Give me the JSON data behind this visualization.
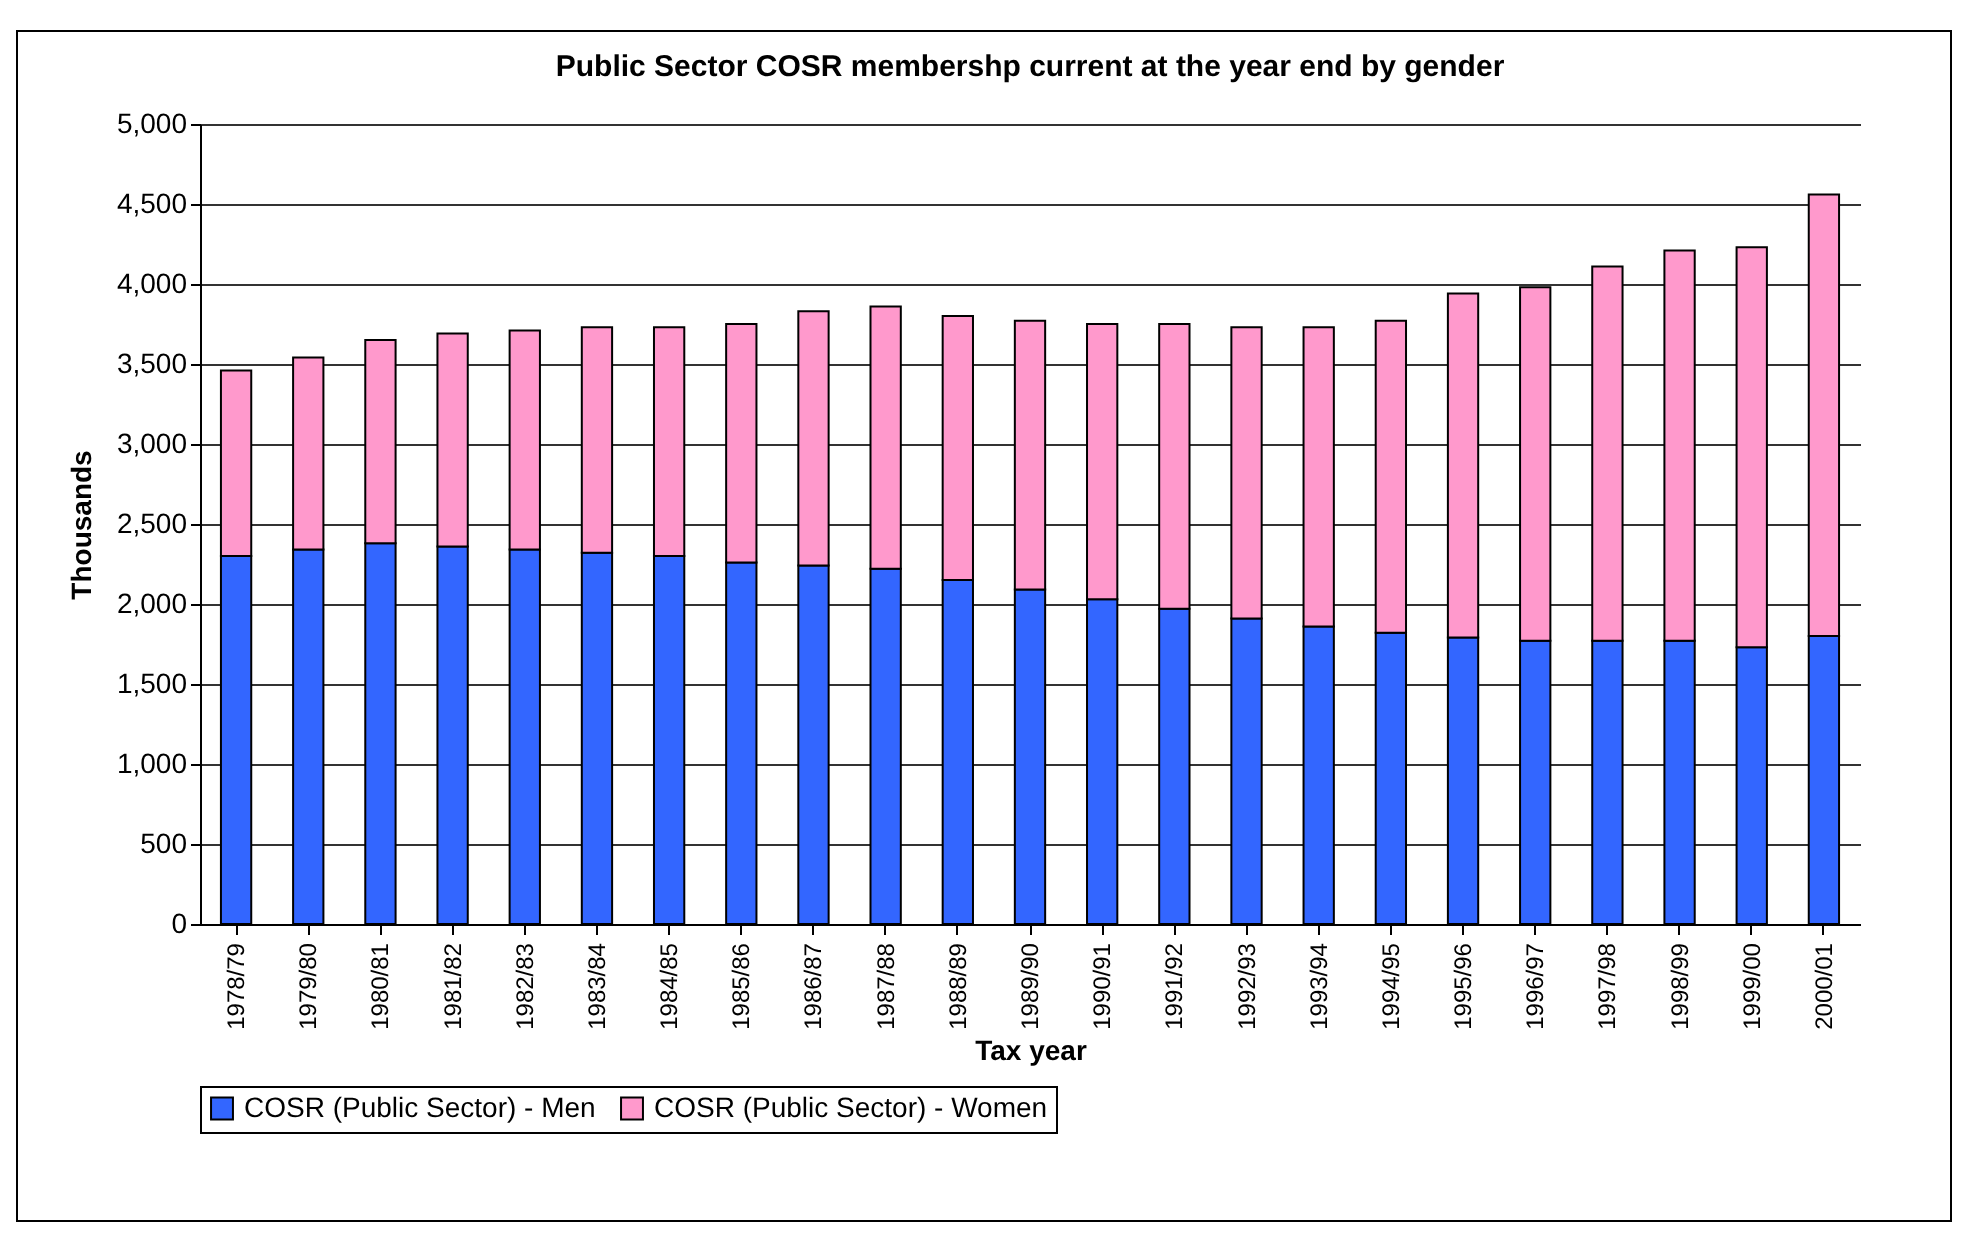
{
  "chart_data": {
    "type": "bar",
    "title": "Public Sector COSR membershp current at the year end by gender",
    "xlabel": "Tax year",
    "ylabel": "Thousands",
    "categories": [
      "1978/79",
      "1979/80",
      "1980/81",
      "1981/82",
      "1982/83",
      "1983/84",
      "1984/85",
      "1985/86",
      "1986/87",
      "1987/88",
      "1988/89",
      "1989/90",
      "1990/91",
      "1991/92",
      "1992/93",
      "1993/94",
      "1994/95",
      "1995/96",
      "1996/97",
      "1997/98",
      "1998/99",
      "1999/00",
      "2000/01"
    ],
    "series": [
      {
        "name": "COSR (Public Sector) - Men",
        "color": "#3366ff",
        "values": [
          2300,
          2340,
          2380,
          2360,
          2340,
          2320,
          2300,
          2260,
          2240,
          2220,
          2150,
          2090,
          2030,
          1970,
          1910,
          1860,
          1820,
          1790,
          1770,
          1770,
          1770,
          1730,
          1800
        ]
      },
      {
        "name": "COSR (Public Sector) - Women",
        "color": "#ff99cc",
        "values": [
          1160,
          1200,
          1270,
          1330,
          1370,
          1410,
          1430,
          1490,
          1590,
          1640,
          1650,
          1680,
          1720,
          1780,
          1820,
          1870,
          1950,
          2150,
          2210,
          2340,
          2440,
          2500,
          2760
        ]
      }
    ],
    "stacked": true,
    "ylim": [
      0,
      5000
    ],
    "yticks": [
      {
        "value": 0,
        "label": "0"
      },
      {
        "value": 500,
        "label": "500"
      },
      {
        "value": 1000,
        "label": "1,000"
      },
      {
        "value": 1500,
        "label": "1,500"
      },
      {
        "value": 2000,
        "label": "2,000"
      },
      {
        "value": 2500,
        "label": "2,500"
      },
      {
        "value": 3000,
        "label": "3,000"
      },
      {
        "value": 3500,
        "label": "3,500"
      },
      {
        "value": 4000,
        "label": "4,000"
      },
      {
        "value": 4500,
        "label": "4,500"
      },
      {
        "value": 5000,
        "label": "5,000"
      }
    ],
    "grid": "y",
    "legend": "bottom"
  }
}
